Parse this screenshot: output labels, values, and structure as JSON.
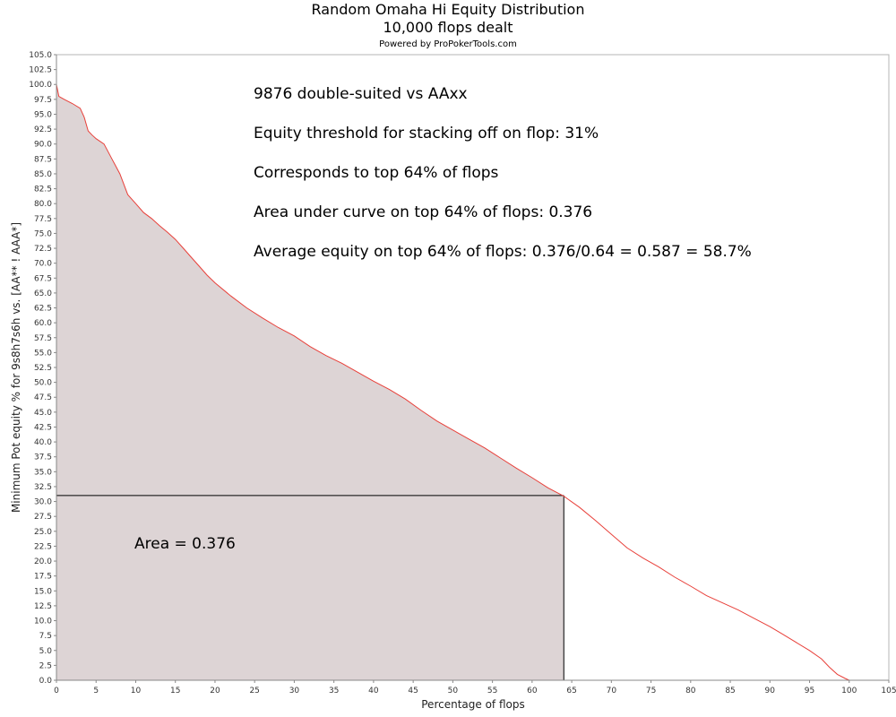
{
  "chart_data": {
    "type": "area",
    "title": "Random Omaha Hi Equity Distribution",
    "subtitle": "10,000 flops dealt",
    "credit": "Powered by ProPokerTools.com",
    "xlabel": "Percentage of flops",
    "ylabel": "Minimum Pot equity % for 9s8h7s6h vs. [AA** ! AAA*]",
    "xlim": [
      0,
      105
    ],
    "ylim": [
      0,
      105
    ],
    "x_ticks": [
      0,
      5,
      10,
      15,
      20,
      25,
      30,
      35,
      40,
      45,
      50,
      55,
      60,
      65,
      70,
      75,
      80,
      85,
      90,
      95,
      100,
      105
    ],
    "y_ticks": [
      0.0,
      2.5,
      5.0,
      7.5,
      10.0,
      12.5,
      15.0,
      17.5,
      20.0,
      22.5,
      25.0,
      27.5,
      30.0,
      32.5,
      35.0,
      37.5,
      40.0,
      42.5,
      45.0,
      47.5,
      50.0,
      52.5,
      55.0,
      57.5,
      60.0,
      62.5,
      65.0,
      67.5,
      70.0,
      72.5,
      75.0,
      77.5,
      80.0,
      82.5,
      85.0,
      87.5,
      90.0,
      92.5,
      95.0,
      97.5,
      100.0,
      102.5,
      105.0
    ],
    "grid": false,
    "line_color": "#e8403a",
    "fill_color": "#ddd4d5",
    "series": [
      {
        "x": [
          0,
          0.3,
          1,
          2,
          3,
          3.5,
          4,
          4.5,
          5,
          6,
          7,
          8,
          9,
          10,
          11,
          12,
          13,
          14,
          15,
          16,
          17,
          18,
          19,
          20,
          22,
          24,
          26,
          28,
          30,
          32,
          34,
          36,
          38,
          40,
          42,
          44,
          46,
          48,
          50,
          52,
          54,
          56,
          58,
          60,
          62,
          64,
          66,
          68,
          70,
          72,
          74,
          76,
          78,
          80,
          82,
          84,
          86,
          88,
          90,
          91.5,
          93,
          95,
          96.5,
          97.5,
          98.5,
          99.5,
          100
        ],
        "y": [
          100,
          98,
          97.5,
          96.8,
          96,
          94.5,
          92.2,
          91.5,
          90.9,
          90,
          87.5,
          85,
          81.5,
          80,
          78.5,
          77.5,
          76.3,
          75.2,
          74,
          72.5,
          71,
          69.5,
          68,
          66.7,
          64.5,
          62.5,
          60.8,
          59.2,
          57.8,
          56,
          54.5,
          53.2,
          51.7,
          50.2,
          48.8,
          47.2,
          45.3,
          43.5,
          42,
          40.5,
          39,
          37.3,
          35.6,
          34,
          32.3,
          30.9,
          29,
          26.8,
          24.5,
          22.2,
          20.5,
          19,
          17.3,
          15.8,
          14.2,
          13,
          11.8,
          10.4,
          9,
          7.8,
          6.6,
          5,
          3.6,
          2.2,
          1,
          0.3,
          0
        ]
      }
    ],
    "threshold": {
      "equity": 31,
      "percent_flops": 64
    },
    "annotations": [
      "9876 double-suited vs AAxx",
      "Equity threshold for stacking off on flop: 31%",
      "Corresponds to top 64% of flops",
      "Area under curve on top 64% of flops: 0.376",
      "Average equity on top 64% of flops: 0.376/0.64 = 0.587 = 58.7%"
    ],
    "area_label": "Area = 0.376"
  }
}
